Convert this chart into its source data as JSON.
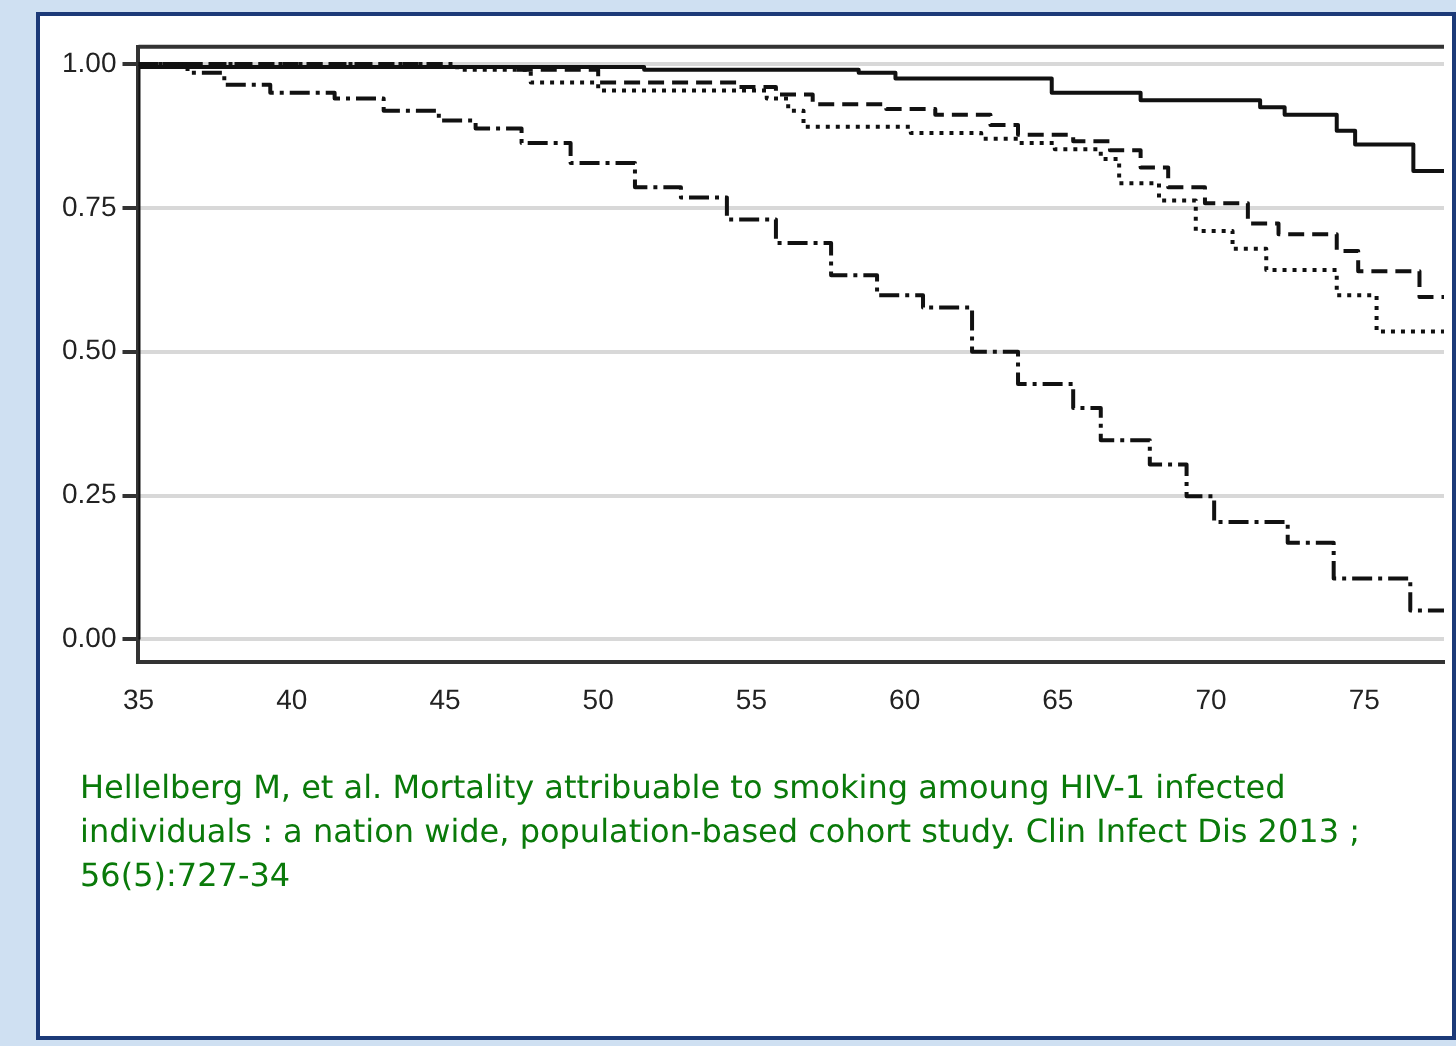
{
  "chart_data": {
    "type": "step",
    "xlim": [
      35,
      77.6
    ],
    "xticks": [
      35,
      40,
      45,
      50,
      55,
      60,
      65,
      70,
      75
    ],
    "ylim": [
      -0.04,
      1.03
    ],
    "yticks": [
      {
        "value": 0,
        "label": "0.00"
      },
      {
        "value": 0.25,
        "label": "0.25"
      },
      {
        "value": 0.5,
        "label": "0.50"
      },
      {
        "value": 0.75,
        "label": "0.75"
      },
      {
        "value": 1,
        "label": "1.00"
      }
    ],
    "grid": "y",
    "legend": false,
    "marker": "none",
    "annotations": [
      "Hellelberg M, et al. Mortality attribuable to smoking amoung HIV-1 infected individuals : a nation wide, population-based cohort study. Clin Infect Dis 2013 ; 56(5):727-34"
    ],
    "series": [
      {
        "color": "#111111",
        "line_style": "solid",
        "x": [
          35,
          35,
          51.5,
          58.5,
          59.7,
          64.8,
          67.7,
          71.6,
          72.4,
          74.1,
          74.7,
          76.6,
          77.6
        ],
        "values": [
          0,
          0.995,
          0.99,
          0.985,
          0.975,
          0.95,
          0.937,
          0.925,
          0.912,
          0.884,
          0.86,
          0.814,
          0.814
        ]
      },
      {
        "color": "#111111",
        "line_style": "dashed",
        "x": [
          35,
          45,
          47.2,
          50,
          54.5,
          55.8,
          57,
          59.4,
          61,
          62.8,
          63.7,
          65.5,
          66.7,
          67.7,
          68.6,
          69.8,
          71.2,
          72.2,
          74.1,
          74.8,
          76.8,
          77.6
        ],
        "values": [
          1,
          0.995,
          0.99,
          0.968,
          0.96,
          0.947,
          0.93,
          0.922,
          0.912,
          0.894,
          0.877,
          0.866,
          0.85,
          0.82,
          0.786,
          0.758,
          0.723,
          0.704,
          0.675,
          0.64,
          0.595,
          0.595
        ]
      },
      {
        "color": "#111111",
        "line_style": "dotted",
        "x": [
          35,
          45.4,
          47.8,
          50,
          55.5,
          56.2,
          56.7,
          60.2,
          62.5,
          63.7,
          64.9,
          66.4,
          67,
          68.3,
          69.5,
          70.7,
          71.8,
          74.1,
          75.4,
          77.6
        ],
        "values": [
          1,
          0.99,
          0.968,
          0.954,
          0.94,
          0.919,
          0.891,
          0.88,
          0.87,
          0.863,
          0.852,
          0.835,
          0.793,
          0.763,
          0.71,
          0.679,
          0.642,
          0.598,
          0.535,
          0.535
        ]
      },
      {
        "color": "#111111",
        "line_style": "dashdot",
        "x": [
          35,
          36.6,
          37.8,
          39.3,
          41.4,
          43,
          44.8,
          46,
          47.5,
          49.1,
          51.2,
          52.7,
          54.2,
          55.8,
          57.6,
          59.1,
          60.6,
          62.2,
          63.7,
          65.5,
          66.4,
          68,
          69.2,
          70.1,
          72.5,
          74,
          76.5,
          77.6
        ],
        "values": [
          1,
          0.985,
          0.964,
          0.95,
          0.94,
          0.919,
          0.902,
          0.888,
          0.863,
          0.828,
          0.786,
          0.768,
          0.73,
          0.689,
          0.633,
          0.598,
          0.577,
          0.5,
          0.444,
          0.402,
          0.346,
          0.304,
          0.249,
          0.204,
          0.168,
          0.106,
          0.05,
          0.05
        ]
      }
    ]
  }
}
